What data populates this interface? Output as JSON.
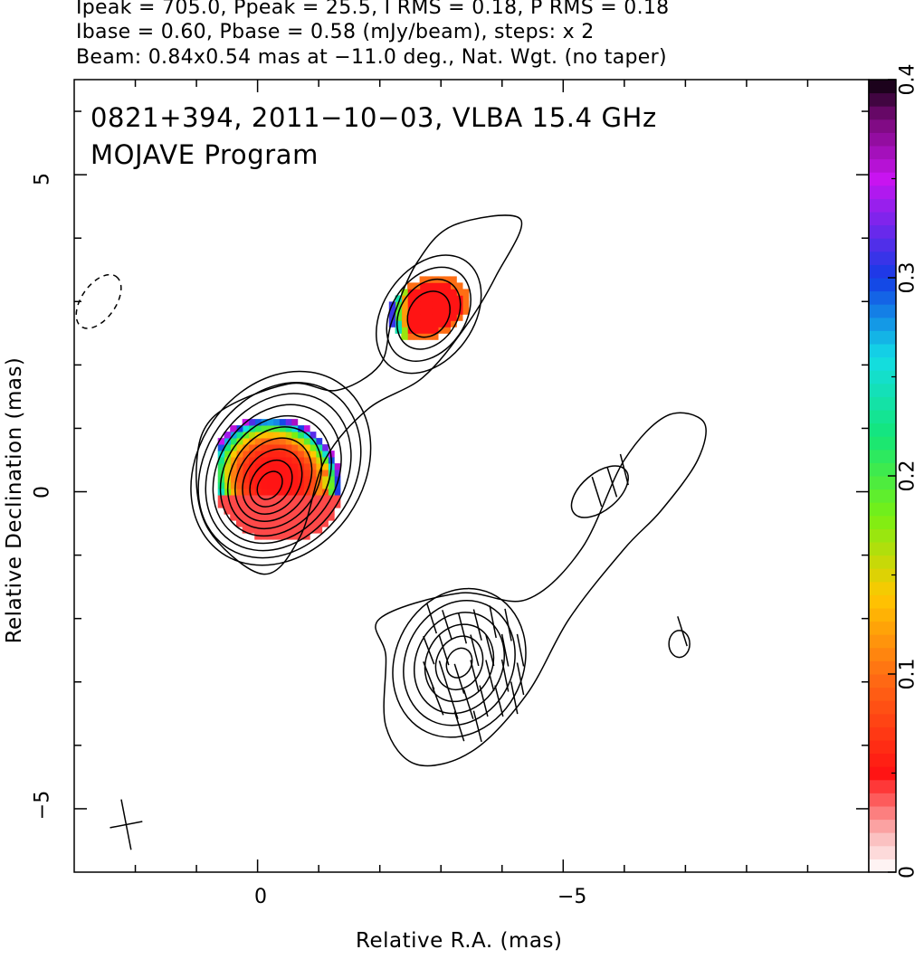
{
  "header": {
    "line1": "Ipeak = 705.0, Ppeak = 25.5, I RMS = 0.18, P RMS = 0.18",
    "line2": "Ibase = 0.60, Pbase = 0.58 (mJy/beam), steps: x 2",
    "line3": "Beam: 0.84x0.54 mas at −11.0 deg., Nat. Wgt. (no taper)"
  },
  "plot_text": {
    "source_line": "0821+394, 2011−10−03, VLBA 15.4 GHz",
    "program_line": "MOJAVE Program"
  },
  "chart_data": {
    "type": "heatmap",
    "xlabel": "Relative R.A. (mas)",
    "ylabel": "Relative Declination (mas)",
    "xlim": [
      3,
      -10
    ],
    "ylim": [
      -6,
      6.5
    ],
    "x_ticks": [
      {
        "value": 0,
        "label": "0"
      },
      {
        "value": -5,
        "label": "−5"
      }
    ],
    "y_ticks": [
      {
        "value": 5,
        "label": "5"
      },
      {
        "value": 0,
        "label": "0"
      },
      {
        "value": -5,
        "label": "−5"
      }
    ],
    "colorbar": {
      "range": [
        0,
        0.4
      ],
      "ticks": [
        {
          "value": 0,
          "label": "0"
        },
        {
          "value": 0.1,
          "label": "0.1"
        },
        {
          "value": 0.2,
          "label": "0.2"
        },
        {
          "value": 0.3,
          "label": "0.3"
        },
        {
          "value": 0.4,
          "label": "0.4"
        }
      ]
    },
    "core": {
      "x": -0.2,
      "y": 0.1
    },
    "total_intensity_contours": {
      "peak_mjy_per_beam": 705.0,
      "base_mjy_per_beam": 0.6,
      "step_factor": 2,
      "components": [
        {
          "name": "core",
          "x": -0.2,
          "y": 0.1,
          "levels": 10
        },
        {
          "name": "northern knot",
          "x": -2.8,
          "y": 2.8,
          "levels": 4
        },
        {
          "name": "southern knot",
          "x": -3.3,
          "y": -2.7,
          "levels": 4
        },
        {
          "name": "western knot",
          "x": -5.6,
          "y": 0.0,
          "levels": 1
        },
        {
          "name": "isolated patch",
          "x": -6.9,
          "y": -2.4,
          "levels": 1
        }
      ],
      "negative_contour": {
        "x": 2.6,
        "y": 3.0
      }
    },
    "fractional_polarization": {
      "regions": [
        {
          "name": "core",
          "x": -0.3,
          "y": 0.2,
          "typical_value": 0.05,
          "edge_value": 0.4
        },
        {
          "name": "northern knot",
          "x": -2.8,
          "y": 2.9,
          "typical_value": 0.05,
          "edge_value": 0.35
        }
      ]
    },
    "polarization_ticks": [
      {
        "x": -2.85,
        "y": -2.0,
        "angle_deg": 30
      },
      {
        "x": -3.1,
        "y": -2.1,
        "angle_deg": 30
      },
      {
        "x": -3.35,
        "y": -2.15,
        "angle_deg": 25
      },
      {
        "x": -3.6,
        "y": -2.1,
        "angle_deg": 25
      },
      {
        "x": -3.85,
        "y": -2.05,
        "angle_deg": 20
      },
      {
        "x": -4.1,
        "y": -2.1,
        "angle_deg": 20
      },
      {
        "x": -2.8,
        "y": -2.5,
        "angle_deg": 35
      },
      {
        "x": -3.05,
        "y": -2.5,
        "angle_deg": 30
      },
      {
        "x": -3.55,
        "y": -2.5,
        "angle_deg": 25
      },
      {
        "x": -3.8,
        "y": -2.5,
        "angle_deg": 25
      },
      {
        "x": -4.05,
        "y": -2.5,
        "angle_deg": 20
      },
      {
        "x": -4.3,
        "y": -2.5,
        "angle_deg": 20
      },
      {
        "x": -2.8,
        "y": -2.9,
        "angle_deg": 35
      },
      {
        "x": -3.05,
        "y": -2.9,
        "angle_deg": 30
      },
      {
        "x": -3.3,
        "y": -2.95,
        "angle_deg": 30
      },
      {
        "x": -3.55,
        "y": -2.9,
        "angle_deg": 25
      },
      {
        "x": -3.8,
        "y": -2.9,
        "angle_deg": 25
      },
      {
        "x": -4.05,
        "y": -2.9,
        "angle_deg": 20
      },
      {
        "x": -4.3,
        "y": -2.95,
        "angle_deg": 20
      },
      {
        "x": -2.95,
        "y": -3.3,
        "angle_deg": 35
      },
      {
        "x": -3.2,
        "y": -3.35,
        "angle_deg": 30
      },
      {
        "x": -3.45,
        "y": -3.35,
        "angle_deg": 30
      },
      {
        "x": -3.7,
        "y": -3.3,
        "angle_deg": 25
      },
      {
        "x": -3.95,
        "y": -3.3,
        "angle_deg": 25
      },
      {
        "x": -4.2,
        "y": -3.25,
        "angle_deg": 20
      },
      {
        "x": -3.3,
        "y": -3.7,
        "angle_deg": 30
      },
      {
        "x": -3.6,
        "y": -3.7,
        "angle_deg": 25
      },
      {
        "x": -5.55,
        "y": 0.0,
        "angle_deg": 30
      },
      {
        "x": -5.8,
        "y": 0.15,
        "angle_deg": 30
      },
      {
        "x": -6.0,
        "y": 0.35,
        "angle_deg": 25
      },
      {
        "x": -6.95,
        "y": -2.2,
        "angle_deg": 30
      }
    ],
    "beam": {
      "major_mas": 0.84,
      "minor_mas": 0.54,
      "pa_deg": -11.0
    }
  },
  "colors": {
    "line": "#000000",
    "background": "#ffffff"
  }
}
